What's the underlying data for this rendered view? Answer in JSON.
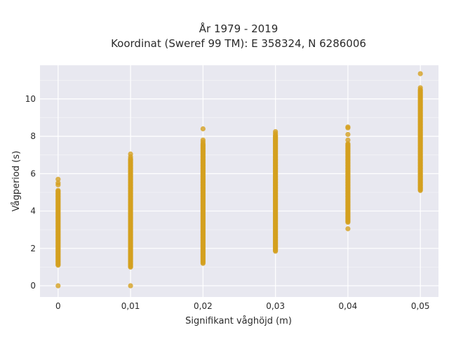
{
  "chart_data": {
    "type": "scatter",
    "title_lines": [
      "År 1979 - 2019",
      "Koordinat (Sweref 99 TM): E 358324, N 6286006"
    ],
    "xlabel": "Signifikant våghöjd (m)",
    "ylabel": "Vågperiod (s)",
    "x_tick_labels": [
      "0",
      "0,01",
      "0,02",
      "0,03",
      "0,04",
      "0,05"
    ],
    "x_ticks": [
      0,
      0.01,
      0.02,
      0.03,
      0.04,
      0.05
    ],
    "y_ticks": [
      0,
      2,
      4,
      6,
      8,
      10
    ],
    "y_tick_labels": [
      "0",
      "2",
      "4",
      "6",
      "8",
      "10"
    ],
    "xlim": [
      -0.0025,
      0.0525
    ],
    "ylim": [
      -0.6,
      11.8
    ],
    "grid": true,
    "marker_color": "#d4a020",
    "background_color": "#e8e8f0",
    "series": [
      {
        "x": 0,
        "ranges": [
          [
            1.1,
            5.1
          ]
        ],
        "points": [
          0,
          5.4,
          5.5,
          5.7
        ]
      },
      {
        "x": 0.01,
        "ranges": [
          [
            1.0,
            6.8
          ]
        ],
        "points": [
          0,
          6.9,
          7.05
        ]
      },
      {
        "x": 0.02,
        "ranges": [
          [
            1.2,
            7.6
          ]
        ],
        "points": [
          7.7,
          7.8,
          8.4
        ]
      },
      {
        "x": 0.03,
        "ranges": [
          [
            1.85,
            8.05
          ]
        ],
        "points": [
          8.15,
          8.25
        ]
      },
      {
        "x": 0.04,
        "ranges": [
          [
            3.4,
            7.6
          ]
        ],
        "points": [
          3.05,
          7.8,
          8.1,
          8.45,
          8.5
        ]
      },
      {
        "x": 0.05,
        "ranges": [
          [
            5.1,
            10.5
          ]
        ],
        "points": [
          10.6,
          11.35
        ]
      }
    ]
  }
}
